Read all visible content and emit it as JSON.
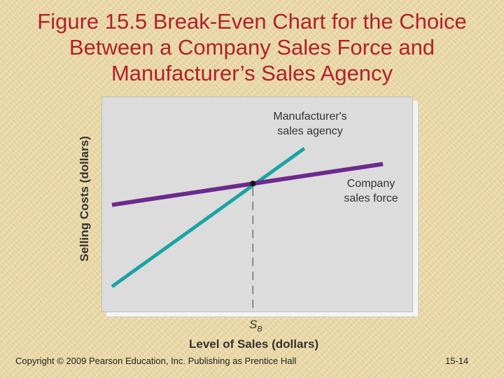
{
  "title": "Figure 15.5 Break-Even Chart for the Choice Between a Company Sales Force and Manufacturer’s Sales Agency",
  "footer": {
    "copyright": "Copyright © 2009 Pearson Education, Inc. Publishing as Prentice Hall",
    "page_number": "15-14"
  },
  "colors": {
    "title": "#b0212b",
    "agency_line": "#1aa3a3",
    "sales_force_line": "#6b2a8c",
    "plot_background": "#dcdcdc"
  },
  "chart_data": {
    "type": "line",
    "ylabel": "Selling Costs (dollars)",
    "xlabel": "Level of Sales (dollars)",
    "xlim": [
      0,
      10
    ],
    "ylim": [
      0,
      10
    ],
    "grid": false,
    "axis_ticks": false,
    "series": [
      {
        "name": "Manufacturer's sales agency",
        "x": [
          0,
          7.1
        ],
        "y": [
          1.1,
          8.2
        ]
      },
      {
        "name": "Company sales force",
        "x": [
          0,
          10
        ],
        "y": [
          5.3,
          7.4
        ]
      }
    ],
    "breakeven": {
      "label": "S",
      "label_sub": "B",
      "x": 5.2,
      "y": 6.4
    },
    "annotations": [
      {
        "series": 0,
        "lines": [
          "Manufacturer's",
          "sales agency"
        ]
      },
      {
        "series": 1,
        "lines": [
          "Company",
          "sales force"
        ]
      }
    ]
  }
}
